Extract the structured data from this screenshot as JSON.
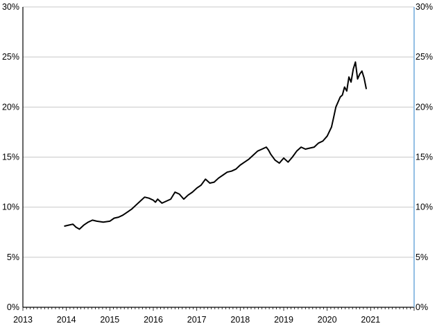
{
  "chart_data": {
    "type": "line",
    "title": "",
    "xlabel": "",
    "ylabel": "",
    "x_ticks": [
      "2013",
      "2014",
      "2015",
      "2016",
      "2017",
      "2018",
      "2019",
      "2020",
      "2021"
    ],
    "xlim": [
      2013,
      2022
    ],
    "y_left_ticks": [
      "0%",
      "5%",
      "10%",
      "15%",
      "20%",
      "25%",
      "30%"
    ],
    "y_right_ticks": [
      "0%",
      "5%",
      "10%",
      "15%",
      "20%",
      "25%",
      "30%"
    ],
    "ylim": [
      0,
      30
    ],
    "grid": true,
    "legend": "none",
    "colors": {
      "line": "#000000",
      "grid": "#c8c8c8",
      "axis": "#000000",
      "right_axis": "#6fa8dc"
    },
    "series": [
      {
        "x": [
          2013.95,
          2014.05,
          2014.15,
          2014.22,
          2014.3,
          2014.4,
          2014.5,
          2014.6,
          2014.7,
          2014.85,
          2015.0,
          2015.1,
          2015.2,
          2015.3,
          2015.4,
          2015.5,
          2015.6,
          2015.7,
          2015.8,
          2015.9,
          2016.0,
          2016.05,
          2016.1,
          2016.2,
          2016.3,
          2016.4,
          2016.5,
          2016.6,
          2016.7,
          2016.8,
          2016.9,
          2017.0,
          2017.1,
          2017.2,
          2017.3,
          2017.4,
          2017.5,
          2017.6,
          2017.7,
          2017.8,
          2017.9,
          2018.0,
          2018.1,
          2018.2,
          2018.3,
          2018.4,
          2018.5,
          2018.6,
          2018.65,
          2018.7,
          2018.8,
          2018.9,
          2019.0,
          2019.1,
          2019.2,
          2019.3,
          2019.4,
          2019.5,
          2019.6,
          2019.7,
          2019.8,
          2019.9,
          2020.0,
          2020.1,
          2020.15,
          2020.2,
          2020.3,
          2020.35,
          2020.4,
          2020.45,
          2020.5,
          2020.55,
          2020.6,
          2020.65,
          2020.7,
          2020.75,
          2020.8,
          2020.85,
          2020.9
        ],
        "y": [
          8.1,
          8.2,
          8.3,
          8.0,
          7.8,
          8.2,
          8.5,
          8.7,
          8.6,
          8.5,
          8.6,
          8.9,
          9.0,
          9.2,
          9.5,
          9.8,
          10.2,
          10.6,
          11.0,
          10.9,
          10.7,
          10.5,
          10.8,
          10.4,
          10.6,
          10.8,
          11.5,
          11.3,
          10.8,
          11.2,
          11.5,
          11.9,
          12.2,
          12.8,
          12.4,
          12.5,
          12.9,
          13.2,
          13.5,
          13.6,
          13.8,
          14.2,
          14.5,
          14.8,
          15.2,
          15.6,
          15.8,
          16.0,
          15.7,
          15.3,
          14.7,
          14.4,
          14.9,
          14.5,
          15.0,
          15.6,
          16.0,
          15.8,
          15.9,
          16.0,
          16.4,
          16.6,
          17.1,
          18.0,
          19.0,
          20.0,
          21.0,
          21.2,
          22.0,
          21.6,
          23.0,
          22.5,
          23.8,
          24.5,
          22.8,
          23.3,
          23.6,
          22.9,
          21.8
        ]
      }
    ]
  }
}
